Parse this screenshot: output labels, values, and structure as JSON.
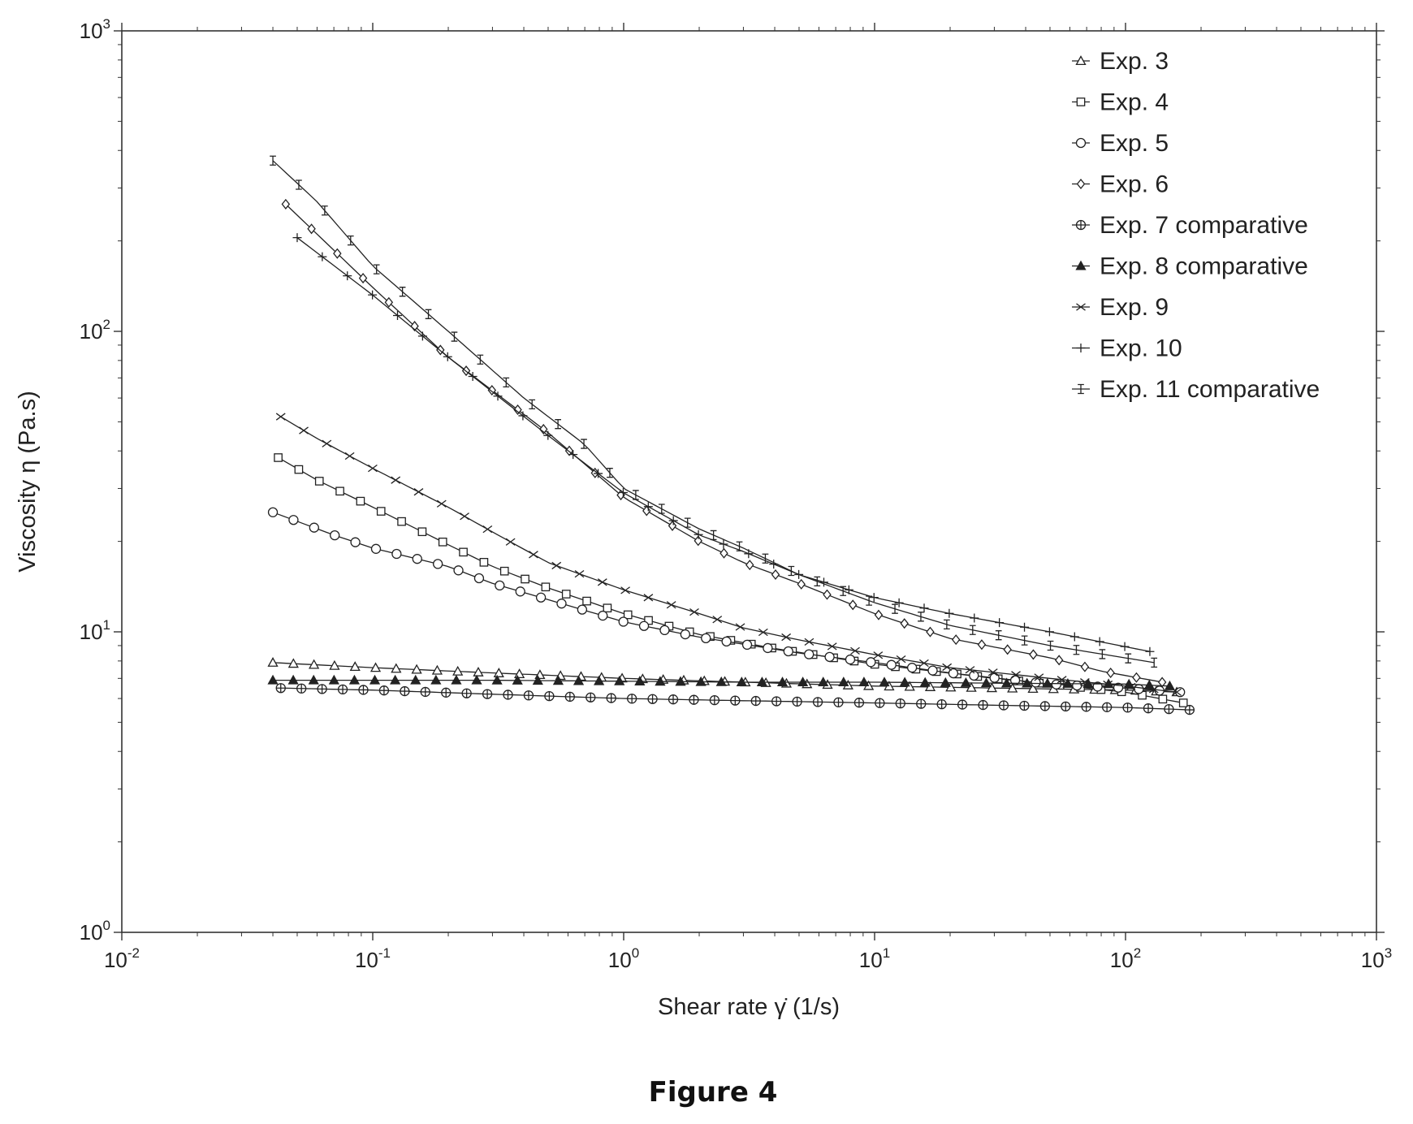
{
  "figure": {
    "caption": "Figure 4"
  },
  "chart_data": {
    "type": "line",
    "title": "",
    "xlabel": "Shear rate  γ̇  (1/s)",
    "ylabel": "Viscosity  η  (Pa.s)",
    "xscale": "log",
    "yscale": "log",
    "xlim": [
      0.01,
      1000
    ],
    "ylim": [
      1,
      1000
    ],
    "x_ticks": [
      {
        "base": "10",
        "exp": "-2",
        "value": 0.01
      },
      {
        "base": "10",
        "exp": "-1",
        "value": 0.1
      },
      {
        "base": "10",
        "exp": "0",
        "value": 1
      },
      {
        "base": "10",
        "exp": "1",
        "value": 10
      },
      {
        "base": "10",
        "exp": "2",
        "value": 100
      },
      {
        "base": "10",
        "exp": "3",
        "value": 1000
      }
    ],
    "y_ticks": [
      {
        "base": "10",
        "exp": "0",
        "value": 1
      },
      {
        "base": "10",
        "exp": "1",
        "value": 10
      },
      {
        "base": "10",
        "exp": "2",
        "value": 100
      },
      {
        "base": "10",
        "exp": "3",
        "value": 1000
      }
    ],
    "grid": false,
    "legend_position": "top-right",
    "series": [
      {
        "name": "Exp. 3",
        "marker": "triangle-open",
        "x_range": [
          0.04,
          160
        ],
        "points": 45,
        "knots": [
          [
            0.04,
            7.9
          ],
          [
            0.1,
            7.6
          ],
          [
            0.3,
            7.3
          ],
          [
            1,
            7.0
          ],
          [
            3,
            6.8
          ],
          [
            10,
            6.6
          ],
          [
            30,
            6.5
          ],
          [
            100,
            6.4
          ],
          [
            160,
            6.3
          ]
        ]
      },
      {
        "name": "Exp. 4",
        "marker": "square-open",
        "x_range": [
          0.042,
          170
        ],
        "points": 45,
        "knots": [
          [
            0.042,
            38
          ],
          [
            0.06,
            32
          ],
          [
            0.1,
            26
          ],
          [
            0.2,
            19.5
          ],
          [
            0.3,
            16.5
          ],
          [
            0.5,
            14
          ],
          [
            1,
            11.5
          ],
          [
            2,
            9.8
          ],
          [
            4,
            8.8
          ],
          [
            10,
            7.8
          ],
          [
            30,
            7.0
          ],
          [
            100,
            6.3
          ],
          [
            170,
            5.8
          ]
        ]
      },
      {
        "name": "Exp. 5",
        "marker": "circle-open",
        "x_range": [
          0.04,
          165
        ],
        "points": 45,
        "knots": [
          [
            0.04,
            25
          ],
          [
            0.07,
            21
          ],
          [
            0.1,
            19
          ],
          [
            0.2,
            16.5
          ],
          [
            0.3,
            14.5
          ],
          [
            0.5,
            12.8
          ],
          [
            1,
            10.8
          ],
          [
            2,
            9.6
          ],
          [
            3,
            9.1
          ],
          [
            5,
            8.5
          ],
          [
            10,
            7.9
          ],
          [
            20,
            7.3
          ],
          [
            50,
            6.7
          ],
          [
            100,
            6.5
          ],
          [
            165,
            6.3
          ]
        ]
      },
      {
        "name": "Exp. 6",
        "marker": "diamond-open",
        "x_range": [
          0.045,
          140
        ],
        "points": 35,
        "knots": [
          [
            0.045,
            265
          ],
          [
            0.1,
            140
          ],
          [
            0.2,
            82
          ],
          [
            0.5,
            46
          ],
          [
            1,
            28
          ],
          [
            2,
            20
          ],
          [
            3,
            17
          ],
          [
            5,
            14.5
          ],
          [
            10,
            11.5
          ],
          [
            20,
            9.5
          ],
          [
            50,
            8.2
          ],
          [
            80,
            7.4
          ],
          [
            140,
            6.8
          ]
        ]
      },
      {
        "name": "Exp. 7 comparative",
        "marker": "cross-circle",
        "x_range": [
          0.043,
          180
        ],
        "points": 45,
        "knots": [
          [
            0.043,
            6.5
          ],
          [
            0.1,
            6.4
          ],
          [
            0.3,
            6.2
          ],
          [
            1,
            6.0
          ],
          [
            3,
            5.9
          ],
          [
            10,
            5.8
          ],
          [
            30,
            5.7
          ],
          [
            100,
            5.6
          ],
          [
            180,
            5.5
          ]
        ]
      },
      {
        "name": "Exp. 8 comparative",
        "marker": "triangle-filled",
        "x_range": [
          0.04,
          150
        ],
        "points": 45,
        "knots": [
          [
            0.04,
            6.9
          ],
          [
            0.1,
            6.9
          ],
          [
            0.3,
            6.9
          ],
          [
            1,
            6.85
          ],
          [
            3,
            6.8
          ],
          [
            10,
            6.8
          ],
          [
            30,
            6.75
          ],
          [
            100,
            6.7
          ],
          [
            150,
            6.6
          ]
        ]
      },
      {
        "name": "Exp. 9",
        "marker": "x",
        "x_range": [
          0.043,
          160
        ],
        "points": 40,
        "knots": [
          [
            0.043,
            52
          ],
          [
            0.06,
            44
          ],
          [
            0.1,
            35
          ],
          [
            0.2,
            26
          ],
          [
            0.3,
            21.5
          ],
          [
            0.5,
            17
          ],
          [
            1,
            13.8
          ],
          [
            2,
            11.5
          ],
          [
            3,
            10.3
          ],
          [
            5,
            9.4
          ],
          [
            10,
            8.4
          ],
          [
            20,
            7.6
          ],
          [
            50,
            7.0
          ],
          [
            100,
            6.6
          ],
          [
            160,
            6.3
          ]
        ]
      },
      {
        "name": "Exp. 10",
        "marker": "plus",
        "x_range": [
          0.05,
          125
        ],
        "points": 35,
        "knots": [
          [
            0.05,
            205
          ],
          [
            0.1,
            132
          ],
          [
            0.2,
            82
          ],
          [
            0.5,
            45
          ],
          [
            1,
            29
          ],
          [
            2,
            21
          ],
          [
            3,
            18.5
          ],
          [
            5,
            15.5
          ],
          [
            10,
            13
          ],
          [
            20,
            11.5
          ],
          [
            50,
            10
          ],
          [
            125,
            8.6
          ]
        ]
      },
      {
        "name": "Exp. 11 comparative",
        "marker": "errorbar",
        "x_range": [
          0.04,
          130
        ],
        "points": 35,
        "knots": [
          [
            0.04,
            370
          ],
          [
            0.06,
            270
          ],
          [
            0.1,
            165
          ],
          [
            0.2,
            100
          ],
          [
            0.4,
            60
          ],
          [
            0.7,
            42
          ],
          [
            1,
            30
          ],
          [
            2,
            22
          ],
          [
            3,
            19
          ],
          [
            5,
            15.5
          ],
          [
            10,
            12.5
          ],
          [
            20,
            10.5
          ],
          [
            50,
            9.0
          ],
          [
            130,
            7.9
          ]
        ]
      }
    ]
  }
}
